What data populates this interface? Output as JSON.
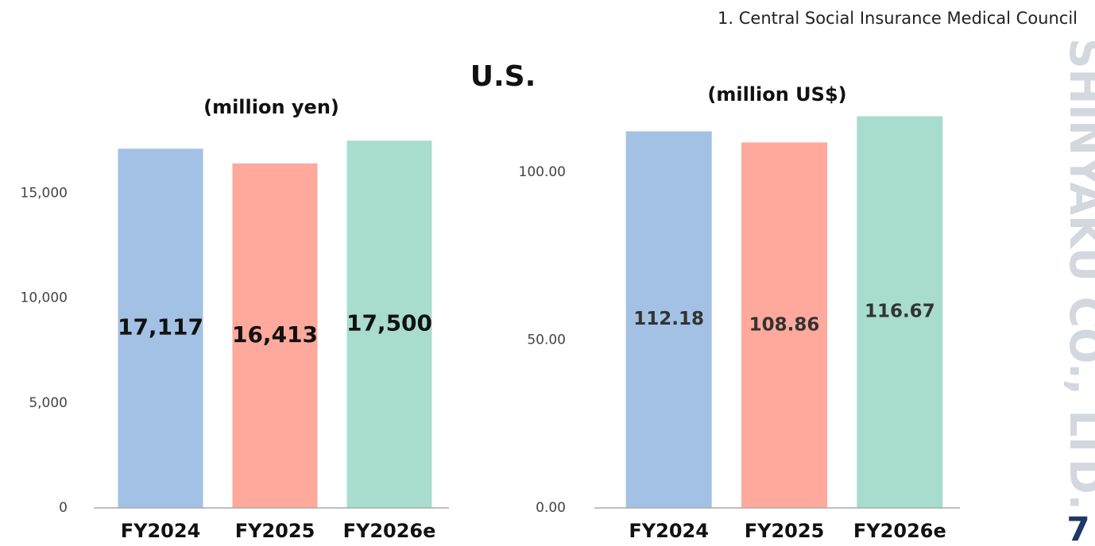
{
  "header": "1. Central Social Insurance Medical Council",
  "title": "U.S.",
  "watermark": "SHINYAKU CO., LTD.",
  "page_number": "7",
  "chart_data": [
    {
      "type": "bar",
      "title": "(million yen)",
      "categories": [
        "FY2024",
        "FY2025",
        "FY2026e"
      ],
      "values": [
        17117,
        16413,
        17500
      ],
      "value_labels": [
        "17,117",
        "16,413",
        "17,500"
      ],
      "colors": [
        "#a3c1e4",
        "#fea99b",
        "#a8dccf"
      ],
      "ylim": [
        0,
        18000
      ],
      "yticks": [
        0,
        {
          "value": 5000,
          "label": "5,000"
        },
        {
          "value": 10000,
          "label": "10,000"
        },
        {
          "value": 15000,
          "label": "15,000"
        }
      ],
      "grid": false
    },
    {
      "type": "bar",
      "title": "(million US$)",
      "categories": [
        "FY2024",
        "FY2025",
        "FY2026e"
      ],
      "values": [
        112.18,
        108.86,
        116.67
      ],
      "colors": [
        "#a3c1e4",
        "#fea99b",
        "#a8dccf"
      ],
      "ylim": [
        0,
        120
      ],
      "yticks": [
        {
          "value": 0,
          "label": "0.00"
        },
        {
          "value": 50,
          "label": "50.00"
        },
        {
          "value": 100,
          "label": "100.00"
        }
      ],
      "grid": false
    }
  ]
}
